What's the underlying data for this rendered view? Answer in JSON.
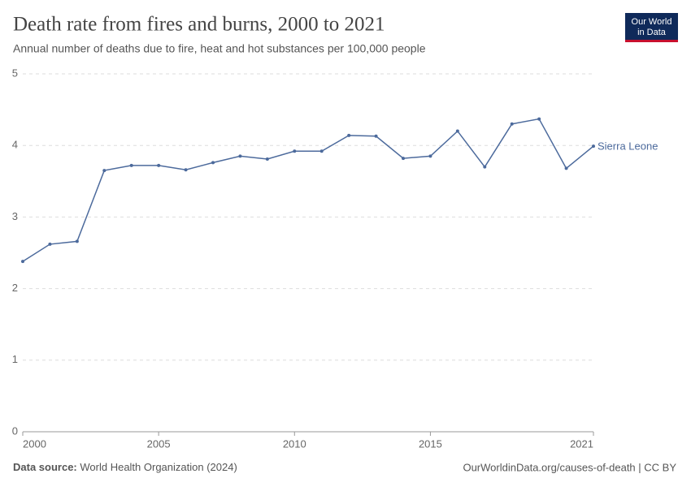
{
  "chart_data": {
    "type": "line",
    "title": "Death rate from fires and burns, 2000 to 2021",
    "subtitle": "Annual number of deaths due to fire, heat and hot substances per 100,000 people",
    "x": [
      2000,
      2001,
      2002,
      2003,
      2004,
      2005,
      2006,
      2007,
      2008,
      2009,
      2010,
      2011,
      2012,
      2013,
      2014,
      2015,
      2016,
      2017,
      2018,
      2019,
      2020,
      2021
    ],
    "series": [
      {
        "name": "Sierra Leone",
        "color": "#4c6a9c",
        "values": [
          2.38,
          2.62,
          2.66,
          3.65,
          3.72,
          3.72,
          3.66,
          3.76,
          3.85,
          3.81,
          3.92,
          3.92,
          4.14,
          4.13,
          3.82,
          3.85,
          4.2,
          3.7,
          4.3,
          4.37,
          3.68,
          3.99
        ]
      }
    ],
    "xlim": [
      2000,
      2021
    ],
    "xticks": [
      2000,
      2005,
      2010,
      2015,
      2021
    ],
    "ylim": [
      0,
      5
    ],
    "yticks": [
      0,
      1,
      2,
      3,
      4,
      5
    ],
    "grid": true,
    "source_label": "Data source:",
    "source": "World Health Organization (2024)",
    "url": "OurWorldinData.org/causes-of-death | CC BY",
    "logo": [
      "Our World",
      "in Data"
    ]
  }
}
